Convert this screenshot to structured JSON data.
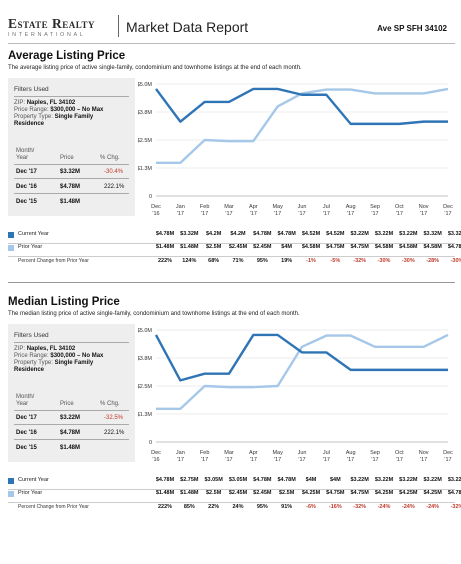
{
  "header": {
    "logo_name": "Estate Realty",
    "logo_sub": "INTERNATIONAL",
    "report_title": "Market Data Report",
    "report_code": "Ave SP SFH 34102"
  },
  "colors": {
    "current": "#2f75b5",
    "prior": "#a6c8e8"
  },
  "labels": {
    "filters_title": "Filters Used",
    "zip_key": "ZIP:",
    "zip_val": "Naples, FL 34102",
    "price_key": "Price Range:",
    "price_val": "$300,000 – No Max",
    "type_key": "Property Type:",
    "type_val": "Single Family",
    "type_val2": "Residence",
    "month_h1": "Month/",
    "month_h2": "Year",
    "price_h": "Price",
    "chg_h": "% Chg.",
    "current_year": "Current Year",
    "prior_year": "Prior Year",
    "pct_change": "Percent Change from Prior Year"
  },
  "sections": [
    {
      "title": "Average Listing Price",
      "subtitle": "The average listing price of active single-family, condominium and townhome listings at the end of each month.",
      "table": [
        {
          "month": "Dec '17",
          "price": "$3.32M",
          "chg": "-30.4%",
          "neg": true
        },
        {
          "month": "Dec '16",
          "price": "$4.78M",
          "chg": "222.1%",
          "neg": false
        },
        {
          "month": "Dec '15",
          "price": "$1.48M",
          "chg": "",
          "neg": false
        }
      ],
      "current_row": [
        "$4.78M",
        "$3.32M",
        "$4.2M",
        "$4.2M",
        "$4.78M",
        "$4.78M",
        "$4.52M",
        "$4.52M",
        "$3.22M",
        "$3.22M",
        "$3.22M",
        "$3.32M",
        "$3.32M"
      ],
      "prior_row": [
        "$1.48M",
        "$1.48M",
        "$2.5M",
        "$2.45M",
        "$2.45M",
        "$4M",
        "$4.58M",
        "$4.75M",
        "$4.75M",
        "$4.58M",
        "$4.58M",
        "$4.58M",
        "$4.78M"
      ],
      "pct_row": [
        "222%",
        "124%",
        "68%",
        "71%",
        "95%",
        "19%",
        "-1%",
        "-5%",
        "-32%",
        "-30%",
        "-30%",
        "-28%",
        "-30%"
      ]
    },
    {
      "title": "Median Listing Price",
      "subtitle": "The median listing price of active single-family, condominium and townhome listings at the end of each month.",
      "table": [
        {
          "month": "Dec '17",
          "price": "$3.22M",
          "chg": "-32.5%",
          "neg": true
        },
        {
          "month": "Dec '16",
          "price": "$4.78M",
          "chg": "222.1%",
          "neg": false
        },
        {
          "month": "Dec '15",
          "price": "$1.48M",
          "chg": "",
          "neg": false
        }
      ],
      "current_row": [
        "$4.78M",
        "$2.75M",
        "$3.05M",
        "$3.05M",
        "$4.78M",
        "$4.78M",
        "$4M",
        "$4M",
        "$3.22M",
        "$3.22M",
        "$3.22M",
        "$3.22M",
        "$3.22M"
      ],
      "prior_row": [
        "$1.48M",
        "$1.48M",
        "$2.5M",
        "$2.45M",
        "$2.45M",
        "$2.5M",
        "$4.25M",
        "$4.75M",
        "$4.75M",
        "$4.25M",
        "$4.25M",
        "$4.25M",
        "$4.78M"
      ],
      "pct_row": [
        "222%",
        "85%",
        "22%",
        "24%",
        "95%",
        "91%",
        "-6%",
        "-16%",
        "-32%",
        "-24%",
        "-24%",
        "-24%",
        "-32%"
      ]
    }
  ],
  "chart_data": [
    {
      "type": "line",
      "title": "Average Listing Price",
      "categories": [
        "Dec '16",
        "Jan '17",
        "Feb '17",
        "Mar '17",
        "Apr '17",
        "May '17",
        "Jun '17",
        "Jul '17",
        "Aug '17",
        "Sep '17",
        "Oct '17",
        "Nov '17",
        "Dec '17"
      ],
      "x_top": [
        "Dec",
        "Jan",
        "Feb",
        "Mar",
        "Apr",
        "May",
        "Jun",
        "Jul",
        "Aug",
        "Sep",
        "Oct",
        "Nov",
        "Dec"
      ],
      "x_bottom": [
        "'16",
        "'17",
        "'17",
        "'17",
        "'17",
        "'17",
        "'17",
        "'17",
        "'17",
        "'17",
        "'17",
        "'17",
        "'17"
      ],
      "y_ticks": [
        "0",
        "$1.3M",
        "$2.5M",
        "$3.8M",
        "$5.0M"
      ],
      "y_tick_values": [
        0,
        1.25,
        2.5,
        3.75,
        5.0
      ],
      "ylim": [
        0,
        5.0
      ],
      "series": [
        {
          "name": "Current Year",
          "values": [
            4.78,
            3.32,
            4.2,
            4.2,
            4.78,
            4.78,
            4.52,
            4.52,
            3.22,
            3.22,
            3.22,
            3.32,
            3.32
          ]
        },
        {
          "name": "Prior Year",
          "values": [
            1.48,
            1.48,
            2.5,
            2.45,
            2.45,
            4.0,
            4.58,
            4.75,
            4.75,
            4.58,
            4.58,
            4.58,
            4.78
          ]
        }
      ],
      "grid": true
    },
    {
      "type": "line",
      "title": "Median Listing Price",
      "categories": [
        "Dec '16",
        "Jan '17",
        "Feb '17",
        "Mar '17",
        "Apr '17",
        "May '17",
        "Jun '17",
        "Jul '17",
        "Aug '17",
        "Sep '17",
        "Oct '17",
        "Nov '17",
        "Dec '17"
      ],
      "x_top": [
        "Dec",
        "Jan",
        "Feb",
        "Mar",
        "Apr",
        "May",
        "Jun",
        "Jul",
        "Aug",
        "Sep",
        "Oct",
        "Nov",
        "Dec"
      ],
      "x_bottom": [
        "'16",
        "'17",
        "'17",
        "'17",
        "'17",
        "'17",
        "'17",
        "'17",
        "'17",
        "'17",
        "'17",
        "'17",
        "'17"
      ],
      "y_ticks": [
        "0",
        "$1.3M",
        "$2.5M",
        "$3.8M",
        "$5.0M"
      ],
      "y_tick_values": [
        0,
        1.25,
        2.5,
        3.75,
        5.0
      ],
      "ylim": [
        0,
        5.0
      ],
      "series": [
        {
          "name": "Current Year",
          "values": [
            4.78,
            2.75,
            3.05,
            3.05,
            4.78,
            4.78,
            4.0,
            4.0,
            3.22,
            3.22,
            3.22,
            3.22,
            3.22
          ]
        },
        {
          "name": "Prior Year",
          "values": [
            1.48,
            1.48,
            2.5,
            2.45,
            2.45,
            2.5,
            4.25,
            4.75,
            4.75,
            4.25,
            4.25,
            4.25,
            4.78
          ]
        }
      ],
      "grid": true
    }
  ]
}
